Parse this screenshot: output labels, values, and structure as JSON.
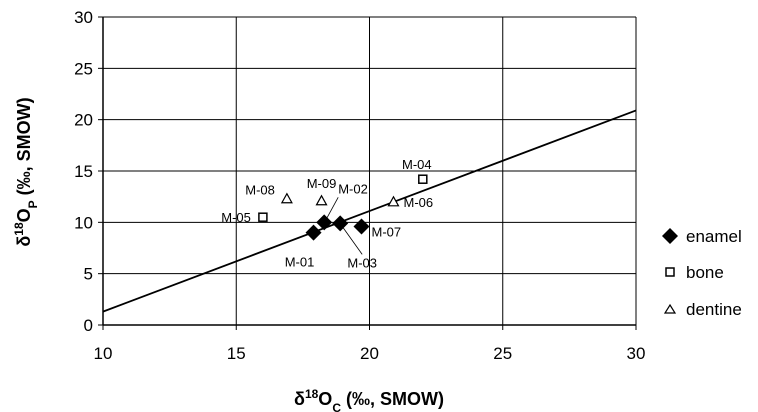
{
  "chart_data": {
    "type": "scatter",
    "x_axis": {
      "label_prefix": "δ",
      "label_sup": "18",
      "label_main": "O",
      "label_sub": "C",
      "label_units": " (‰, SMOW)",
      "range": [
        10,
        30
      ],
      "ticks": [
        "10",
        "15",
        "20",
        "25",
        "30"
      ],
      "tick_values": [
        10,
        15,
        20,
        25,
        30
      ]
    },
    "y_axis": {
      "label_prefix": "δ",
      "label_sup": "18",
      "label_main": "O",
      "label_sub": "P",
      "label_units": " (‰, SMOW)",
      "range": [
        0,
        30
      ],
      "ticks": [
        "0",
        "5",
        "10",
        "15",
        "20",
        "25",
        "30"
      ],
      "tick_values": [
        0,
        5,
        10,
        15,
        20,
        25,
        30
      ]
    },
    "grid": true,
    "legend_position": "right",
    "series": [
      {
        "name": "enamel",
        "marker": "diamond",
        "points": [
          {
            "label": "M-01",
            "x": 17.9,
            "y": 9.0
          },
          {
            "label": "M-02",
            "x": 18.3,
            "y": 10.0
          },
          {
            "label": "M-03",
            "x": 18.9,
            "y": 9.9
          },
          {
            "label": "M-07",
            "x": 19.7,
            "y": 9.6
          }
        ]
      },
      {
        "name": "bone",
        "marker": "square",
        "points": [
          {
            "label": "M-05",
            "x": 16.0,
            "y": 10.5
          },
          {
            "label": "M-04",
            "x": 22.0,
            "y": 14.2
          }
        ]
      },
      {
        "name": "dentine",
        "marker": "triangle",
        "points": [
          {
            "label": "M-08",
            "x": 16.9,
            "y": 12.3
          },
          {
            "label": "M-09",
            "x": 18.2,
            "y": 12.1
          },
          {
            "label": "M-06",
            "x": 20.9,
            "y": 12.0
          }
        ]
      }
    ],
    "trendline": {
      "x": [
        10,
        30
      ],
      "y": [
        1.3,
        20.9
      ]
    }
  }
}
